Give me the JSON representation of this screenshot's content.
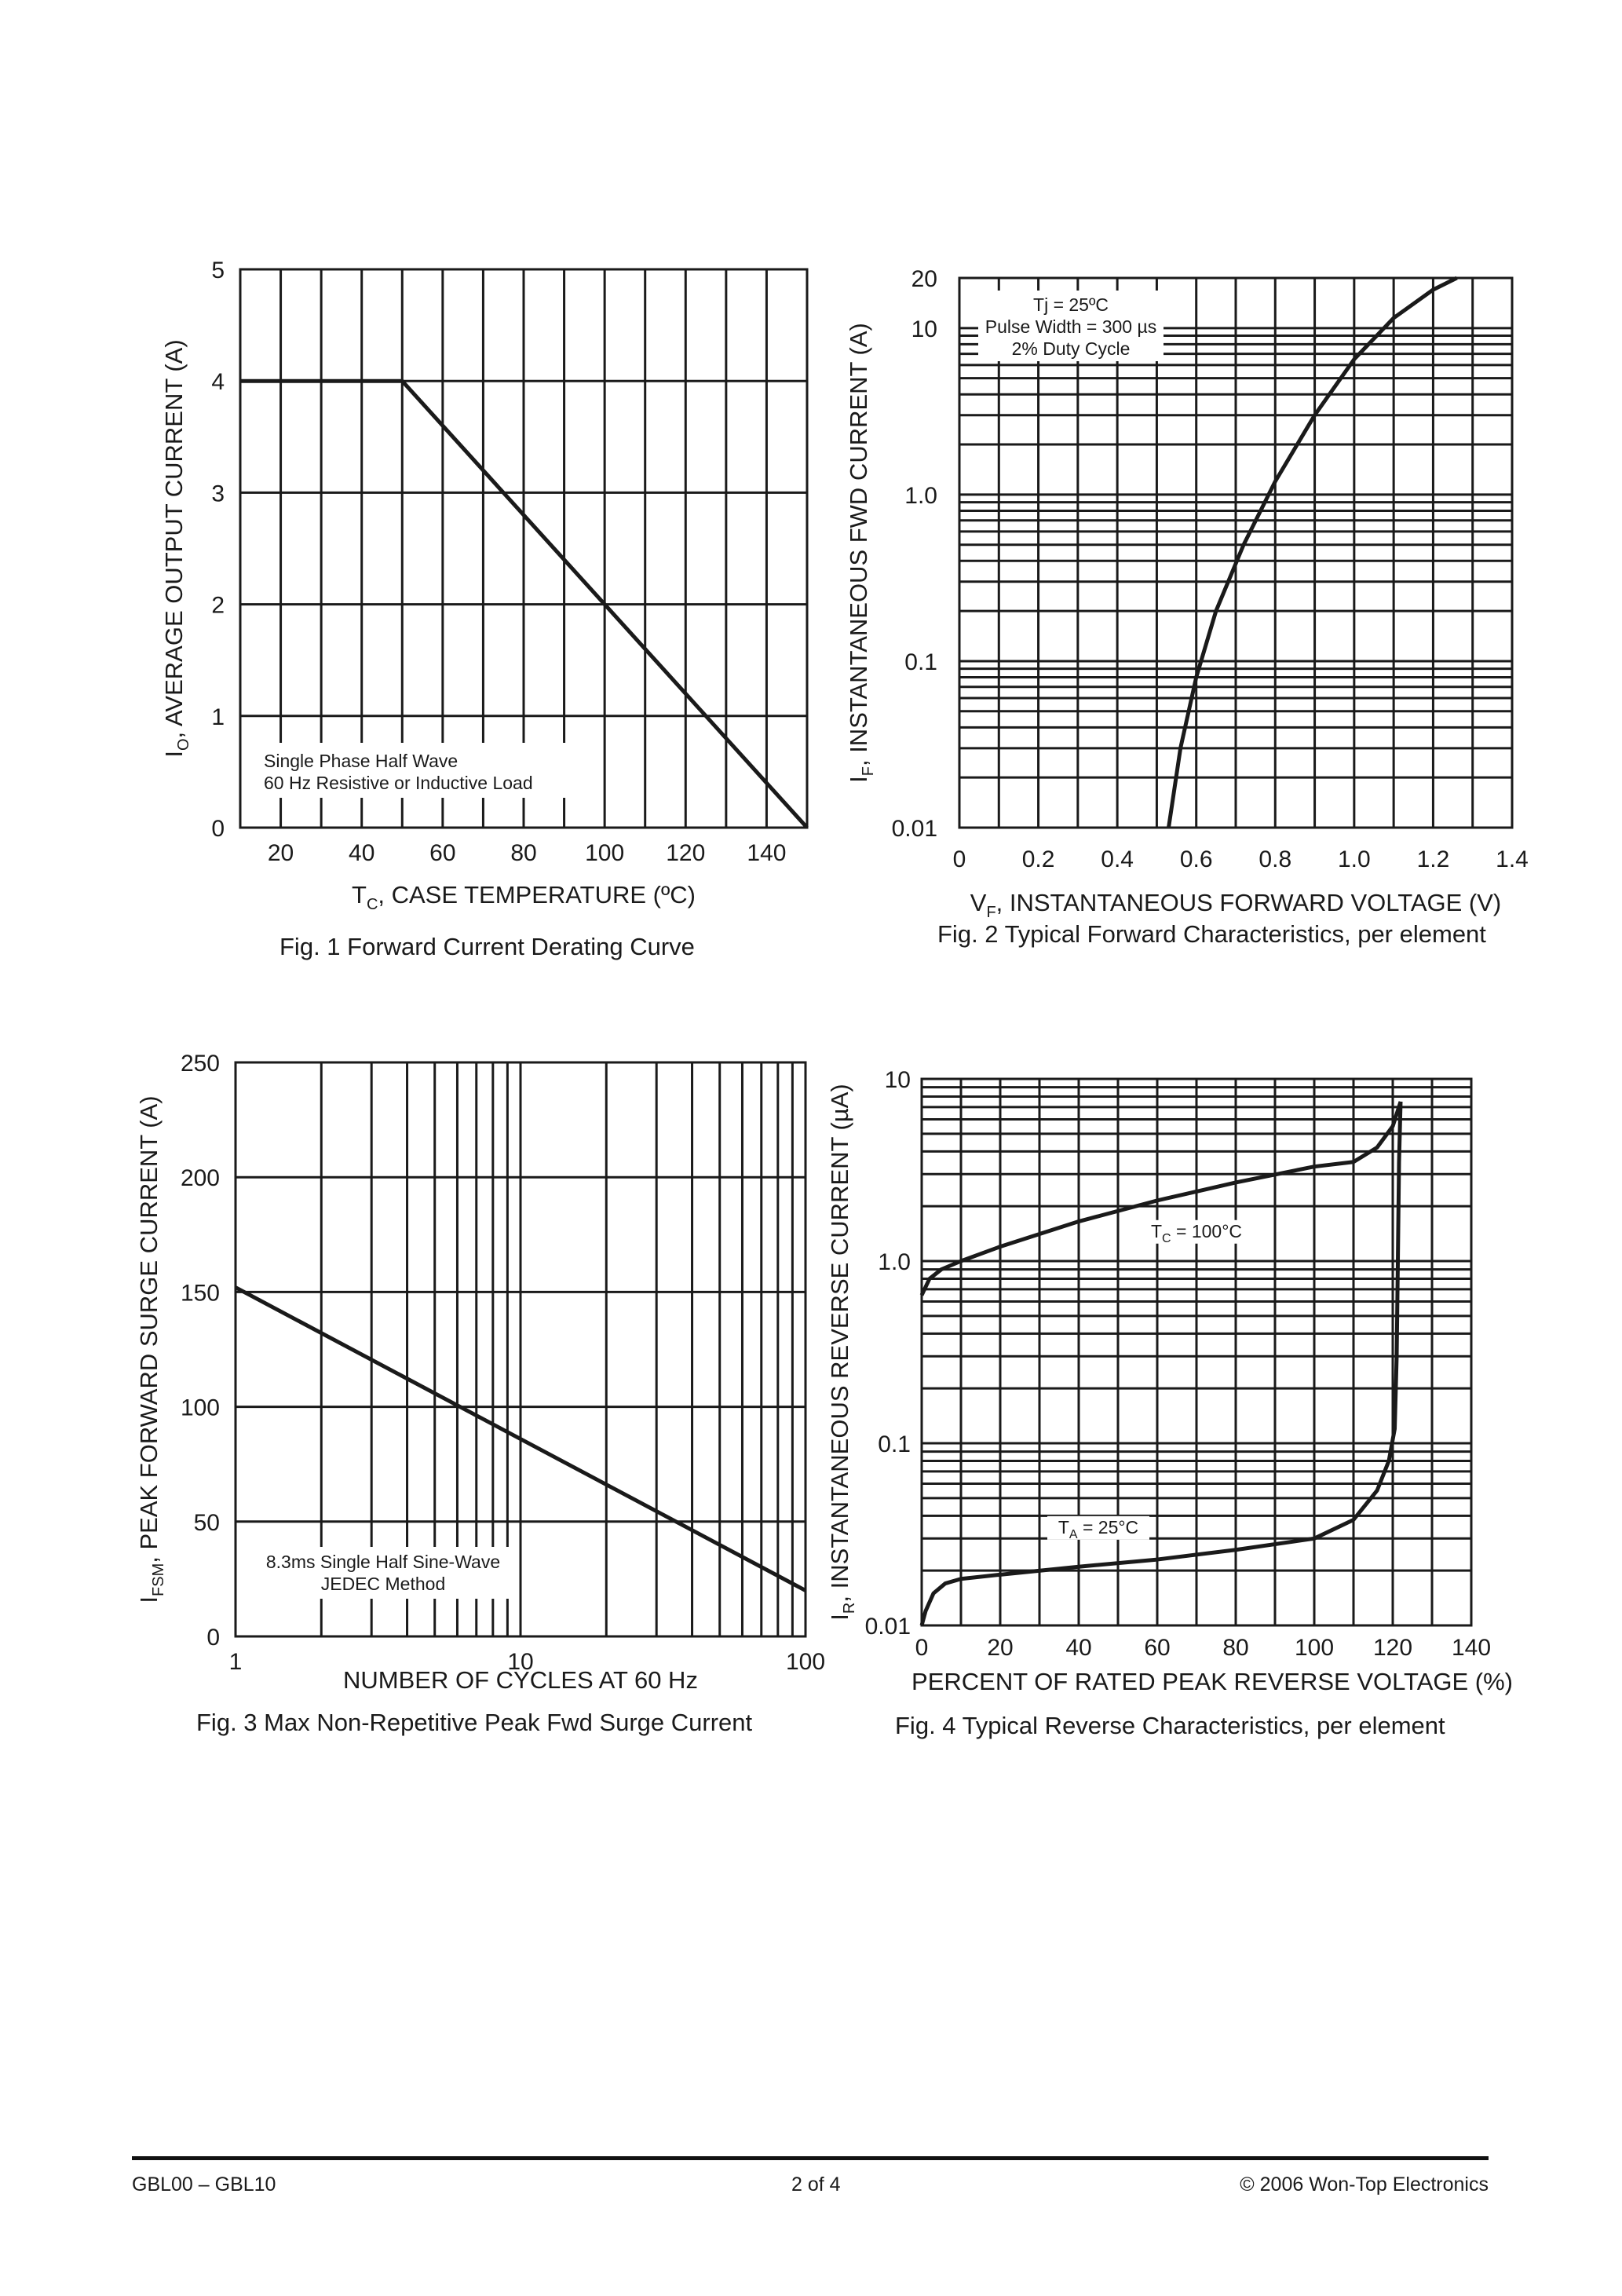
{
  "chart_data": [
    {
      "type": "line",
      "figure_label": "Fig. 1  Forward Current Derating Curve",
      "ylabel_sym": "I",
      "ylabel_sub": "O",
      "ylabel_rest": ",  AVERAGE OUTPUT CURRENT (A)",
      "xlabel_sym": "T",
      "xlabel_sub": "C",
      "xlabel_rest": ", CASE TEMPERATURE (ºC)",
      "xlim": [
        10,
        150
      ],
      "ylim": [
        0,
        5
      ],
      "x_ticks": [
        20,
        40,
        60,
        80,
        100,
        120,
        140
      ],
      "y_ticks": [
        0,
        1,
        2,
        3,
        4,
        5
      ],
      "annotation": [
        "Single Phase Half Wave",
        "60 Hz Resistive or Inductive Load"
      ],
      "series": [
        {
          "x": [
            10,
            50,
            150
          ],
          "y": [
            4,
            4,
            0
          ]
        }
      ]
    },
    {
      "type": "line",
      "yscale": "log",
      "figure_label": "Fig. 2  Typical Forward Characteristics, per element",
      "ylabel_sym": "I",
      "ylabel_sub": "F",
      "ylabel_rest": ",  INSTANTANEOUS FWD CURRENT (A)",
      "xlabel_sym": "V",
      "xlabel_sub": "F",
      "xlabel_rest": ", INSTANTANEOUS FORWARD VOLTAGE (V)",
      "xlim": [
        0,
        1.4
      ],
      "ylim": [
        0.01,
        20
      ],
      "x_ticks": [
        "0",
        "0.2",
        "0.4",
        "0.6",
        "0.8",
        "1.0",
        "1.2",
        "1.4"
      ],
      "y_ticks": [
        {
          "v": 0.01,
          "t": "0.01"
        },
        {
          "v": 0.1,
          "t": "0.1"
        },
        {
          "v": 1,
          "t": "1.0"
        },
        {
          "v": 10,
          "t": "10"
        },
        {
          "v": 20,
          "t": "20"
        }
      ],
      "annotation": [
        "Tj = 25ºC",
        "Pulse Width = 300 µs",
        "2% Duty Cycle"
      ],
      "series": [
        {
          "x": [
            0.53,
            0.56,
            0.6,
            0.65,
            0.72,
            0.8,
            0.9,
            1.0,
            1.1,
            1.2,
            1.26
          ],
          "y": [
            0.01,
            0.03,
            0.08,
            0.2,
            0.5,
            1.2,
            3.0,
            6.5,
            11.5,
            17,
            20
          ]
        }
      ]
    },
    {
      "type": "line",
      "xscale": "log",
      "figure_label": "Fig. 3  Max Non-Repetitive Peak Fwd Surge Current",
      "ylabel_sym": "I",
      "ylabel_sub": "FSM",
      "ylabel_rest": ",  PEAK FORWARD SURGE CURRENT (A)",
      "xlabel_text": "NUMBER OF CYCLES AT 60 Hz",
      "xlim": [
        1,
        100
      ],
      "ylim": [
        0,
        250
      ],
      "x_ticks": [
        {
          "v": 1,
          "t": "1"
        },
        {
          "v": 10,
          "t": "10"
        },
        {
          "v": 100,
          "t": "100"
        }
      ],
      "y_ticks": [
        0,
        50,
        100,
        150,
        200,
        250
      ],
      "annotation": [
        "8.3ms Single Half Sine-Wave",
        "JEDEC Method"
      ],
      "series": [
        {
          "x": [
            1,
            100
          ],
          "y": [
            152,
            20
          ]
        }
      ]
    },
    {
      "type": "line",
      "yscale": "log",
      "figure_label": "Fig. 4  Typical Reverse Characteristics, per element",
      "ylabel_sym": "I",
      "ylabel_sub": "R",
      "ylabel_rest": ",  INSTANTANEOUS REVERSE CURRENT (µA)",
      "xlabel_text": "PERCENT OF RATED  PEAK REVERSE VOLTAGE (%)",
      "xlim": [
        0,
        140
      ],
      "ylim": [
        0.01,
        10
      ],
      "x_ticks": [
        0,
        20,
        40,
        60,
        80,
        100,
        120,
        140
      ],
      "y_ticks": [
        {
          "v": 0.01,
          "t": "0.01"
        },
        {
          "v": 0.1,
          "t": "0.1"
        },
        {
          "v": 1,
          "t": "1.0"
        },
        {
          "v": 10,
          "t": "10"
        }
      ],
      "series": [
        {
          "label_sym": "T",
          "label_sub": "C",
          "label_rest": " = 100°C",
          "x": [
            0,
            2,
            5,
            10,
            20,
            40,
            60,
            80,
            100,
            110,
            116,
            120,
            122
          ],
          "y": [
            0.65,
            0.8,
            0.9,
            1.0,
            1.2,
            1.65,
            2.15,
            2.7,
            3.3,
            3.5,
            4.2,
            5.5,
            7.5
          ]
        },
        {
          "label_sym": "T",
          "label_sub": "A",
          "label_rest": " = 25°C",
          "x": [
            0,
            1,
            3,
            6,
            10,
            20,
            40,
            60,
            80,
            100,
            110,
            116,
            119,
            120.5,
            121,
            121.3,
            121.6,
            122
          ],
          "y": [
            0.01,
            0.012,
            0.015,
            0.017,
            0.018,
            0.019,
            0.021,
            0.023,
            0.026,
            0.03,
            0.038,
            0.055,
            0.08,
            0.12,
            0.3,
            1.0,
            3.5,
            7.5
          ]
        }
      ]
    }
  ],
  "footer": {
    "left": "GBL00 – GBL10",
    "center": "2 of 4",
    "right": "© 2006 Won-Top Electronics"
  }
}
